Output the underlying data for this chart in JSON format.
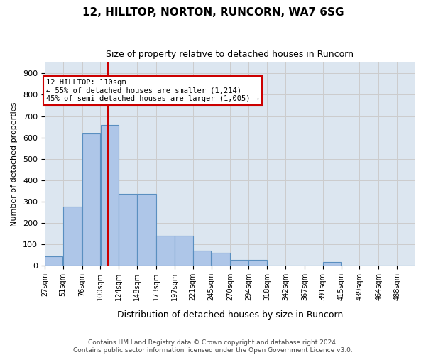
{
  "title1": "12, HILLTOP, NORTON, RUNCORN, WA7 6SG",
  "title2": "Size of property relative to detached houses in Runcorn",
  "xlabel": "Distribution of detached houses by size in Runcorn",
  "ylabel": "Number of detached properties",
  "annotation_line1": "12 HILLTOP: 110sqm",
  "annotation_line2": "← 55% of detached houses are smaller (1,214)",
  "annotation_line3": "45% of semi-detached houses are larger (1,005) →",
  "property_size_sqm": 110,
  "bar_edges": [
    27,
    51,
    76,
    100,
    124,
    148,
    173,
    197,
    221,
    245,
    270,
    294,
    318,
    342,
    367,
    391,
    415,
    439,
    464,
    488,
    512
  ],
  "bar_heights": [
    42,
    275,
    620,
    660,
    335,
    335,
    140,
    140,
    70,
    60,
    25,
    25,
    0,
    0,
    0,
    18,
    0,
    0,
    0,
    0
  ],
  "bar_color": "#aec6e8",
  "bar_edge_color": "#5a8fc0",
  "vline_color": "#cc0000",
  "vline_x": 110,
  "annotation_box_color": "#ffffff",
  "annotation_box_edge_color": "#cc0000",
  "ylim": [
    0,
    950
  ],
  "yticks": [
    0,
    100,
    200,
    300,
    400,
    500,
    600,
    700,
    800,
    900
  ],
  "grid_color": "#cccccc",
  "bg_color": "#dce6f0",
  "footer1": "Contains HM Land Registry data © Crown copyright and database right 2024.",
  "footer2": "Contains public sector information licensed under the Open Government Licence v3.0."
}
